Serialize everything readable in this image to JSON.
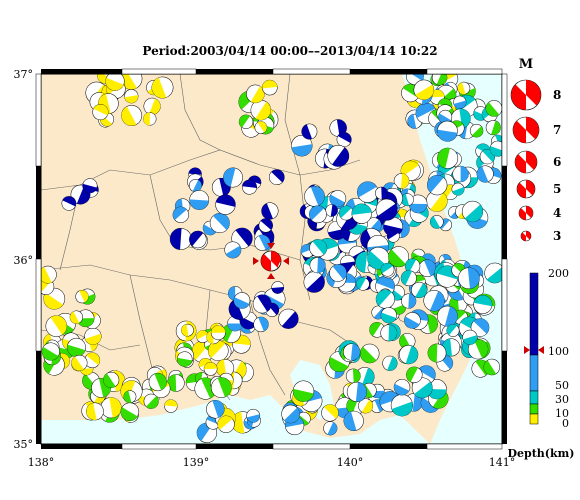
{
  "title": "Period:2003/04/14 00:00––2013/04/14 10:22",
  "axes": {
    "lon_ticks": [
      "138°",
      "139°",
      "140°",
      "141°"
    ],
    "lat_ticks": [
      "37°",
      "36°",
      "35°"
    ],
    "lon_range": [
      138,
      141
    ],
    "lat_range": [
      35,
      37
    ]
  },
  "magnitude_legend": {
    "title": "M",
    "levels": [
      "8",
      "7",
      "6",
      "5",
      "4",
      "3"
    ]
  },
  "depth_legend": {
    "label": "Depth(km)",
    "ticks": [
      "200",
      "100",
      "50",
      "30",
      "10",
      "0"
    ],
    "marker_depth": "100"
  },
  "colors": {
    "land": "#fce9c9",
    "sea": "#e6ffff",
    "frame": "#000000",
    "event_highlight": "#ff0000",
    "depth_0_10": "#ffee00",
    "depth_10_30": "#33dd00",
    "depth_30_50": "#00c8c8",
    "depth_50_100": "#2f9df2",
    "depth_100_200": "#0000aa"
  },
  "main_event": {
    "lon": 139.47,
    "lat": 36.08
  }
}
